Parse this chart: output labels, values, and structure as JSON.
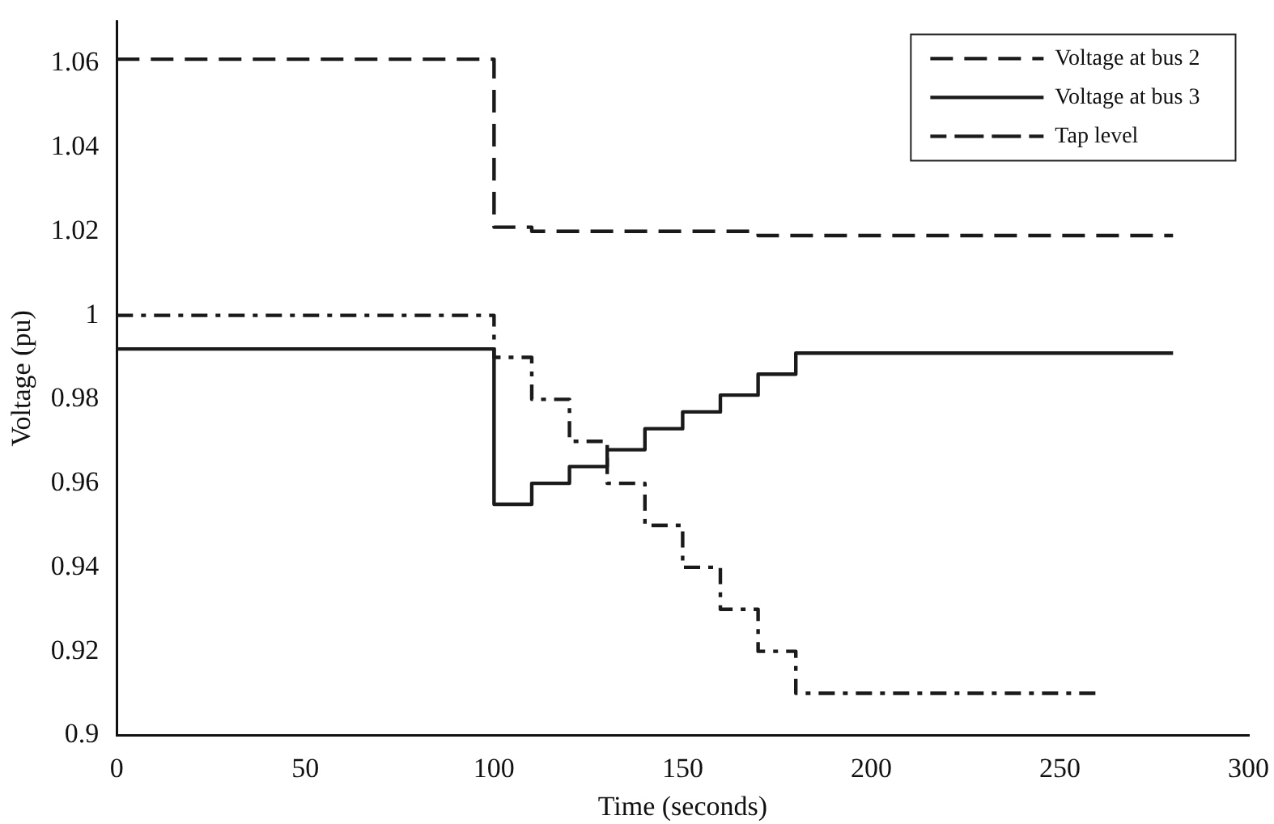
{
  "chart_data": {
    "type": "step",
    "xlabel": "Time (seconds)",
    "ylabel": "Voltage (pu)",
    "xlim": [
      0,
      300
    ],
    "xticks": [
      0,
      50,
      100,
      150,
      200,
      250,
      300
    ],
    "ylim": [
      0.9,
      1.07
    ],
    "yticks": [
      {
        "value": 0.9,
        "label": "0.9"
      },
      {
        "value": 0.92,
        "label": "0.92"
      },
      {
        "value": 0.94,
        "label": "0.94"
      },
      {
        "value": 0.96,
        "label": "0.96"
      },
      {
        "value": 0.98,
        "label": "0.98"
      },
      {
        "value": 1,
        "label": "1"
      },
      {
        "value": 1.02,
        "label": "1.02"
      },
      {
        "value": 1.04,
        "label": "1.04"
      },
      {
        "value": 1.06,
        "label": "1.06"
      }
    ],
    "grid": false,
    "legend": "top right",
    "marker": "none",
    "series": [
      {
        "name": "Voltage at bus 2",
        "color": "#1a1a1a",
        "line_style": "dashed",
        "x": [
          0,
          100,
          110,
          150,
          170,
          280
        ],
        "values": [
          1.061,
          1.021,
          1.02,
          1.02,
          1.019,
          1.019
        ]
      },
      {
        "name": "Voltage at bus 3",
        "color": "#1a1a1a",
        "line_style": "solid",
        "x": [
          0,
          100,
          110,
          120,
          130,
          140,
          150,
          160,
          170,
          180,
          280
        ],
        "values": [
          0.992,
          0.955,
          0.96,
          0.964,
          0.968,
          0.973,
          0.977,
          0.981,
          0.986,
          0.991,
          0.991
        ]
      },
      {
        "name": "Tap level",
        "color": "#1a1a1a",
        "line_style": "dashdot",
        "x": [
          0,
          100,
          110,
          120,
          130,
          140,
          150,
          160,
          170,
          180,
          260
        ],
        "values": [
          1.0,
          0.99,
          0.98,
          0.97,
          0.96,
          0.95,
          0.94,
          0.93,
          0.92,
          0.91,
          0.91
        ]
      }
    ]
  }
}
